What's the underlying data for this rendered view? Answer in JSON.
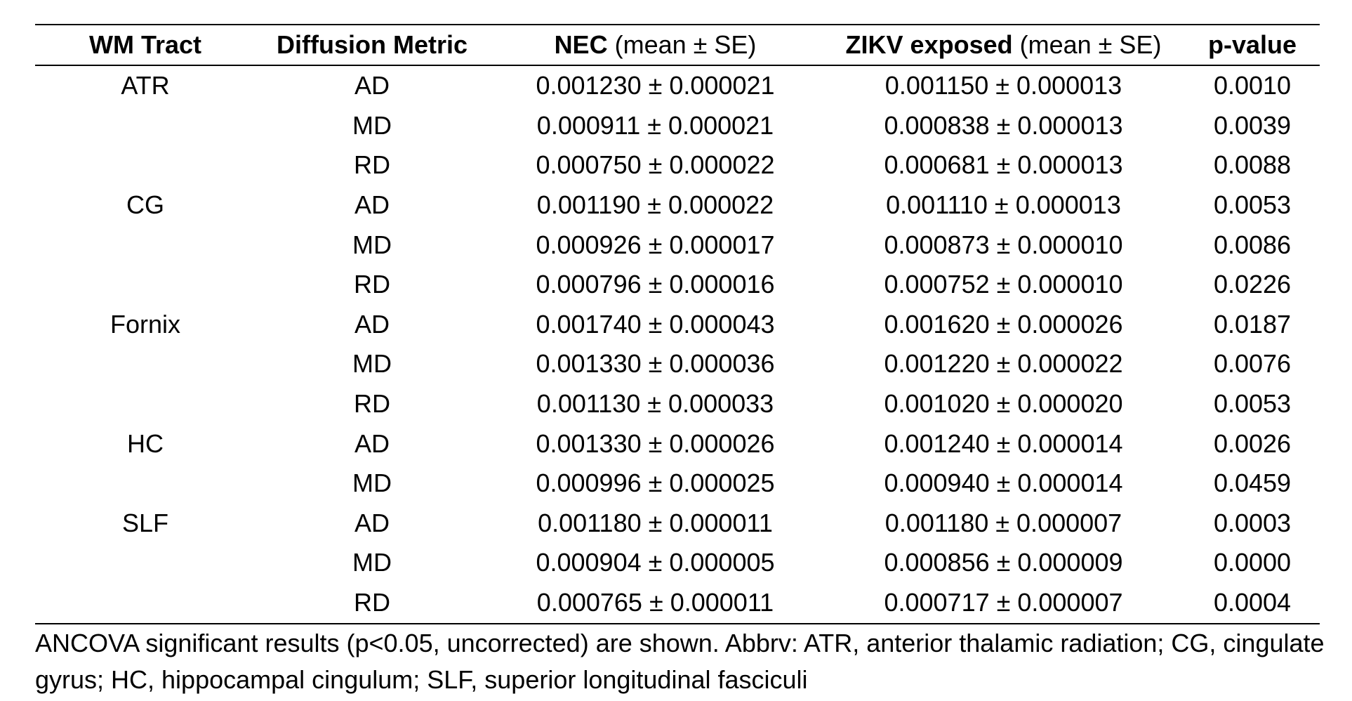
{
  "table": {
    "headers": {
      "tract": "WM Tract",
      "metric": "Diffusion Metric",
      "nec_bold": "NEC",
      "nec_rest": "(mean ± SE)",
      "zikv_bold": "ZIKV exposed",
      "zikv_rest": "(mean ± SE)",
      "pvalue": "p-value"
    },
    "rows": [
      {
        "tract": "ATR",
        "metric": "AD",
        "nec": "0.001230 ± 0.000021",
        "zikv": "0.001150 ± 0.000013",
        "p": "0.0010"
      },
      {
        "tract": "",
        "metric": "MD",
        "nec": "0.000911 ± 0.000021",
        "zikv": "0.000838 ± 0.000013",
        "p": "0.0039"
      },
      {
        "tract": "",
        "metric": "RD",
        "nec": "0.000750 ± 0.000022",
        "zikv": "0.000681 ± 0.000013",
        "p": "0.0088"
      },
      {
        "tract": "CG",
        "metric": "AD",
        "nec": "0.001190 ± 0.000022",
        "zikv": "0.001110 ± 0.000013",
        "p": "0.0053"
      },
      {
        "tract": "",
        "metric": "MD",
        "nec": "0.000926 ± 0.000017",
        "zikv": "0.000873 ± 0.000010",
        "p": "0.0086"
      },
      {
        "tract": "",
        "metric": "RD",
        "nec": "0.000796 ± 0.000016",
        "zikv": "0.000752 ± 0.000010",
        "p": "0.0226"
      },
      {
        "tract": "Fornix",
        "metric": "AD",
        "nec": "0.001740 ± 0.000043",
        "zikv": "0.001620 ± 0.000026",
        "p": "0.0187"
      },
      {
        "tract": "",
        "metric": "MD",
        "nec": "0.001330 ± 0.000036",
        "zikv": "0.001220 ± 0.000022",
        "p": "0.0076"
      },
      {
        "tract": "",
        "metric": "RD",
        "nec": "0.001130 ± 0.000033",
        "zikv": "0.001020 ± 0.000020",
        "p": "0.0053"
      },
      {
        "tract": "HC",
        "metric": "AD",
        "nec": "0.001330 ± 0.000026",
        "zikv": "0.001240 ± 0.000014",
        "p": "0.0026"
      },
      {
        "tract": "",
        "metric": "MD",
        "nec": "0.000996 ± 0.000025",
        "zikv": "0.000940 ± 0.000014",
        "p": "0.0459"
      },
      {
        "tract": "SLF",
        "metric": "AD",
        "nec": "0.001180 ± 0.000011",
        "zikv": "0.001180 ± 0.000007",
        "p": "0.0003"
      },
      {
        "tract": "",
        "metric": "MD",
        "nec": "0.000904 ± 0.000005",
        "zikv": "0.000856 ± 0.000009",
        "p": "0.0000"
      },
      {
        "tract": "",
        "metric": "RD",
        "nec": "0.000765 ± 0.000011",
        "zikv": "0.000717 ± 0.000007",
        "p": "0.0004"
      }
    ]
  },
  "footnote": "ANCOVA significant results (p<0.05, uncorrected) are shown. Abbrv: ATR, anterior thalamic radiation; CG, cingulate gyrus; HC, hippocampal cingulum; SLF, superior longitudinal fasciculi"
}
